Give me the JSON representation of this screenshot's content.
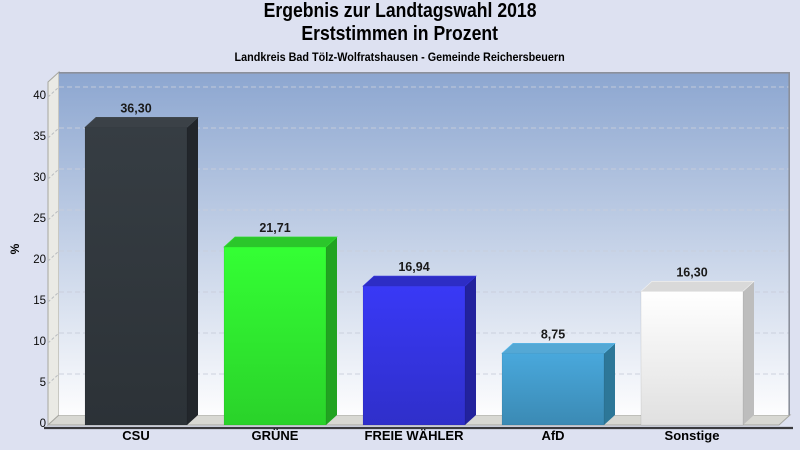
{
  "page": {
    "background": "#dde1f1"
  },
  "chart_data": {
    "type": "bar",
    "style": "3d-column",
    "title": "Ergebnis zur Landtagswahl 2018",
    "subtitle": "Erststimmen in Prozent",
    "caption": "Landkreis Bad Tölz-Wolfratshausen - Gemeinde Reichersbeuern",
    "ylabel": "%",
    "ylim": [
      0,
      40
    ],
    "yticks": [
      0,
      5,
      10,
      15,
      20,
      25,
      30,
      35,
      40
    ],
    "grid": "dashed",
    "legend_position": "none",
    "categories": [
      "CSU",
      "GRÜNE",
      "FREIE WÄHLER",
      "AfD",
      "Sonstige"
    ],
    "values": [
      36.3,
      21.71,
      16.94,
      8.75,
      16.3
    ],
    "value_labels": [
      "36,30",
      "21,71",
      "16,94",
      "8,75",
      "16,30"
    ],
    "bar_colors": [
      {
        "category": "CSU",
        "front": "#31373d",
        "top": "#3b4147",
        "side": "#22262b"
      },
      {
        "category": "GRÜNE",
        "front": "#2fe92f",
        "top": "#2bc62b",
        "side": "#21a321"
      },
      {
        "category": "FREIE WÄHLER",
        "front": "#3434e0",
        "top": "#2d2dc5",
        "side": "#22229d"
      },
      {
        "category": "AfD",
        "front": "#4299c8",
        "top": "#54a8d5",
        "side": "#2d7798"
      },
      {
        "category": "Sonstige",
        "front": "#f9f9f9",
        "top": "#d9d9d9",
        "side": "#bdbdbd"
      }
    ],
    "colors": {
      "page_background": "#dde1f1",
      "plot_gradient_top": "#8ca6d0",
      "plot_gradient_bottom": "#fdfdfe",
      "wall": "#eaeae5",
      "floor": "#d8d8d3",
      "axis_line": "#3a3a3e",
      "grid_line": "#c9cedb",
      "wall_tick": "#b9bcc0",
      "plot_border": "#8b909b",
      "title_text": "#000000",
      "value_text": "#1a1a1a",
      "tick_text": "#0a0a0a"
    }
  }
}
